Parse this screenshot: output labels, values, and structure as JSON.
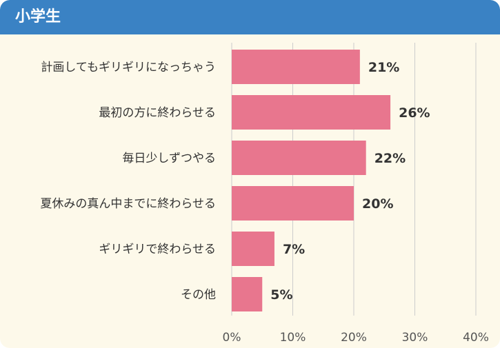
{
  "header": {
    "title": "小学生"
  },
  "colors": {
    "header": "#3a82c4",
    "bar": "#e8768e",
    "background": "#fdf9ea",
    "grid": "#cccccc"
  },
  "chart_data": {
    "type": "bar",
    "orientation": "horizontal",
    "categories": [
      "計画してもギリギリになっちゃう",
      "最初の方に終わらせる",
      "毎日少しずつやる",
      "夏休みの真ん中までに終わらせる",
      "ギリギリで終わらせる",
      "その他"
    ],
    "values": [
      21,
      26,
      22,
      20,
      7,
      5
    ],
    "value_labels": [
      "21%",
      "26%",
      "22%",
      "20%",
      "7%",
      "5%"
    ],
    "xlim": [
      0,
      40
    ],
    "ticks": [
      0,
      10,
      20,
      30,
      40
    ],
    "tick_labels": [
      "0%",
      "10%",
      "20%",
      "30%",
      "40%"
    ],
    "grid": true,
    "legend": "none"
  }
}
